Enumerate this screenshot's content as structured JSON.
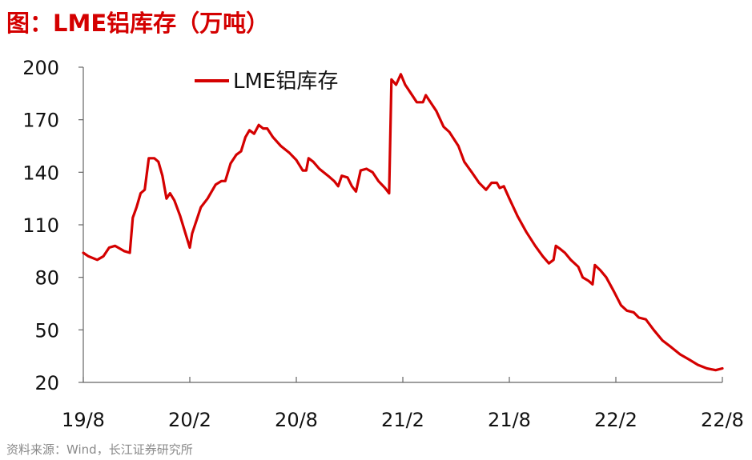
{
  "title": "图：LME铝库存（万吨）",
  "source": "资料来源：Wind，长江证券研究所",
  "chart_data": {
    "type": "line",
    "title": "图：LME铝库存（万吨）",
    "xlabel": "",
    "ylabel": "",
    "ylim": [
      20,
      200
    ],
    "yticks": [
      20,
      50,
      80,
      110,
      140,
      170,
      200
    ],
    "xlim": [
      "2019-08",
      "2022-08"
    ],
    "xticks": [
      "19/8",
      "20/2",
      "20/8",
      "21/2",
      "21/8",
      "22/2",
      "22/8"
    ],
    "grid": false,
    "legend": "top-center",
    "series": [
      {
        "name": "LME铝库存",
        "color": "#d40000",
        "points": [
          [
            "2019-08-01",
            94
          ],
          [
            "2019-08-10",
            92
          ],
          [
            "2019-08-25",
            90
          ],
          [
            "2019-09-05",
            92
          ],
          [
            "2019-09-15",
            97
          ],
          [
            "2019-09-25",
            98
          ],
          [
            "2019-10-10",
            95
          ],
          [
            "2019-10-20",
            94
          ],
          [
            "2019-10-25",
            114
          ],
          [
            "2019-11-01",
            120
          ],
          [
            "2019-11-08",
            128
          ],
          [
            "2019-11-15",
            130
          ],
          [
            "2019-11-22",
            148
          ],
          [
            "2019-12-01",
            148
          ],
          [
            "2019-12-08",
            146
          ],
          [
            "2019-12-15",
            138
          ],
          [
            "2019-12-22",
            125
          ],
          [
            "2019-12-28",
            128
          ],
          [
            "2020-01-05",
            124
          ],
          [
            "2020-01-15",
            115
          ],
          [
            "2020-01-25",
            104
          ],
          [
            "2020-02-01",
            97
          ],
          [
            "2020-02-05",
            105
          ],
          [
            "2020-02-12",
            112
          ],
          [
            "2020-02-20",
            120
          ],
          [
            "2020-03-01",
            125
          ],
          [
            "2020-03-15",
            133
          ],
          [
            "2020-03-25",
            135
          ],
          [
            "2020-04-01",
            135
          ],
          [
            "2020-04-10",
            145
          ],
          [
            "2020-04-20",
            150
          ],
          [
            "2020-04-28",
            152
          ],
          [
            "2020-05-05",
            160
          ],
          [
            "2020-05-12",
            164
          ],
          [
            "2020-05-20",
            162
          ],
          [
            "2020-05-28",
            167
          ],
          [
            "2020-06-05",
            165
          ],
          [
            "2020-06-12",
            165
          ],
          [
            "2020-06-22",
            160
          ],
          [
            "2020-07-05",
            155
          ],
          [
            "2020-07-20",
            151
          ],
          [
            "2020-08-01",
            147
          ],
          [
            "2020-08-12",
            141
          ],
          [
            "2020-08-18",
            141
          ],
          [
            "2020-08-22",
            148
          ],
          [
            "2020-08-30",
            146
          ],
          [
            "2020-09-10",
            142
          ],
          [
            "2020-09-25",
            138
          ],
          [
            "2020-10-05",
            135
          ],
          [
            "2020-10-12",
            132
          ],
          [
            "2020-10-18",
            138
          ],
          [
            "2020-10-28",
            137
          ],
          [
            "2020-11-05",
            132
          ],
          [
            "2020-11-12",
            129
          ],
          [
            "2020-11-20",
            141
          ],
          [
            "2020-11-30",
            142
          ],
          [
            "2020-12-10",
            140
          ],
          [
            "2020-12-20",
            135
          ],
          [
            "2021-01-01",
            131
          ],
          [
            "2021-01-08",
            128
          ],
          [
            "2021-01-12",
            193
          ],
          [
            "2021-01-20",
            190
          ],
          [
            "2021-01-28",
            196
          ],
          [
            "2021-02-05",
            190
          ],
          [
            "2021-02-15",
            185
          ],
          [
            "2021-02-25",
            180
          ],
          [
            "2021-03-05",
            180
          ],
          [
            "2021-03-10",
            184
          ],
          [
            "2021-03-18",
            180
          ],
          [
            "2021-03-28",
            175
          ],
          [
            "2021-04-10",
            166
          ],
          [
            "2021-04-20",
            163
          ],
          [
            "2021-05-05",
            155
          ],
          [
            "2021-05-15",
            146
          ],
          [
            "2021-05-28",
            140
          ],
          [
            "2021-06-10",
            134
          ],
          [
            "2021-06-22",
            130
          ],
          [
            "2021-07-01",
            134
          ],
          [
            "2021-07-10",
            134
          ],
          [
            "2021-07-15",
            131
          ],
          [
            "2021-07-22",
            132
          ],
          [
            "2021-08-01",
            125
          ],
          [
            "2021-08-15",
            115
          ],
          [
            "2021-08-30",
            106
          ],
          [
            "2021-09-15",
            98
          ],
          [
            "2021-09-28",
            92
          ],
          [
            "2021-10-08",
            88
          ],
          [
            "2021-10-16",
            90
          ],
          [
            "2021-10-20",
            98
          ],
          [
            "2021-10-28",
            96
          ],
          [
            "2021-11-05",
            94
          ],
          [
            "2021-11-15",
            90
          ],
          [
            "2021-11-28",
            86
          ],
          [
            "2021-12-05",
            80
          ],
          [
            "2021-12-15",
            78
          ],
          [
            "2021-12-22",
            76
          ],
          [
            "2021-12-26",
            87
          ],
          [
            "2022-01-05",
            84
          ],
          [
            "2022-01-15",
            80
          ],
          [
            "2022-01-28",
            72
          ],
          [
            "2022-02-10",
            64
          ],
          [
            "2022-02-20",
            61
          ],
          [
            "2022-03-01",
            60
          ],
          [
            "2022-03-10",
            57
          ],
          [
            "2022-03-22",
            56
          ],
          [
            "2022-04-05",
            50
          ],
          [
            "2022-04-20",
            44
          ],
          [
            "2022-05-05",
            40
          ],
          [
            "2022-05-20",
            36
          ],
          [
            "2022-06-05",
            33
          ],
          [
            "2022-06-20",
            30
          ],
          [
            "2022-07-05",
            28
          ],
          [
            "2022-07-20",
            27
          ],
          [
            "2022-08-01",
            28
          ]
        ]
      }
    ]
  }
}
